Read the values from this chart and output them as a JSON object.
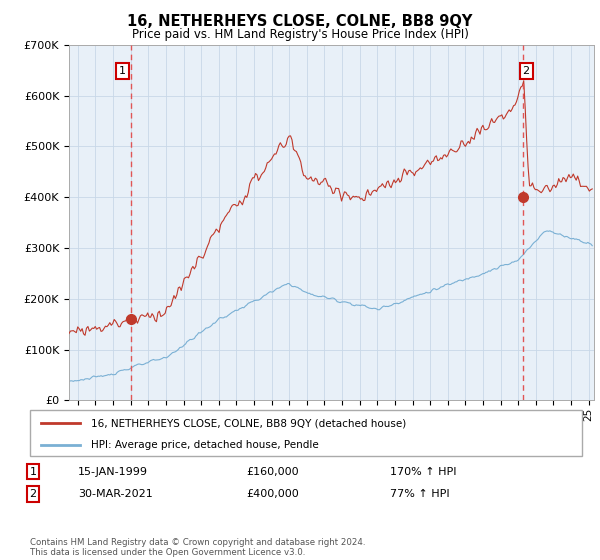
{
  "title": "16, NETHERHEYS CLOSE, COLNE, BB8 9QY",
  "subtitle": "Price paid vs. HM Land Registry's House Price Index (HPI)",
  "legend_line1": "16, NETHERHEYS CLOSE, COLNE, BB8 9QY (detached house)",
  "legend_line2": "HPI: Average price, detached house, Pendle",
  "sale1_date": "15-JAN-1999",
  "sale1_price": "£160,000",
  "sale1_hpi": "170% ↑ HPI",
  "sale2_date": "30-MAR-2021",
  "sale2_price": "£400,000",
  "sale2_hpi": "77% ↑ HPI",
  "footnote": "Contains HM Land Registry data © Crown copyright and database right 2024.\nThis data is licensed under the Open Government Licence v3.0.",
  "hpi_color": "#7ab0d4",
  "price_color": "#c0392b",
  "vline_color": "#e05555",
  "bg_color": "#e8f0f8",
  "grid_color": "#c8d8e8",
  "ylim": [
    0,
    700000
  ],
  "yticks": [
    0,
    100000,
    200000,
    300000,
    400000,
    500000,
    600000,
    700000
  ],
  "sale1_x": 1999.04,
  "sale1_y": 160000,
  "sale2_x": 2021.25,
  "sale2_y": 400000,
  "xmin": 1995.5,
  "xmax": 2025.3
}
